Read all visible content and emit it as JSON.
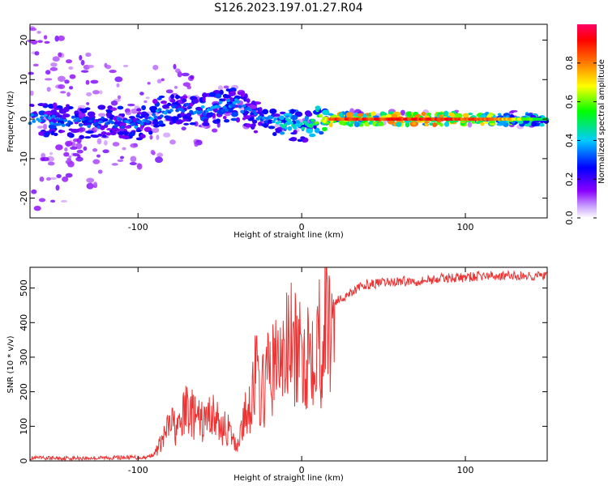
{
  "title": "S126.2023.197.01.27.R04",
  "chart_data": [
    {
      "type": "heatmap",
      "xlabel": "Height of straight line (km)",
      "ylabel": "Frequency (Hz)",
      "xlim": [
        -166,
        150
      ],
      "ylim": [
        -25,
        24
      ],
      "xticks": [
        -100,
        0,
        100
      ],
      "yticks": [
        -20,
        -10,
        0,
        10,
        20
      ],
      "colorbar": {
        "label": "Normalized spectral amplitude",
        "range": [
          0,
          1
        ],
        "ticks": [
          0.0,
          0.2,
          0.4,
          0.6,
          0.8
        ],
        "colormap": [
          "#ffffff",
          "#8a00ff",
          "#0000ff",
          "#00ccff",
          "#00ff00",
          "#ffff00",
          "#ff6600",
          "#ff0000",
          "#ff0066"
        ]
      },
      "description_points": {
        "ridge": [
          {
            "x": -166,
            "y": 0,
            "amp": 0.35
          },
          {
            "x": -120,
            "y": -1,
            "amp": 0.3
          },
          {
            "x": -95,
            "y": -1,
            "amp": 0.35
          },
          {
            "x": -85,
            "y": 2,
            "amp": 0.35
          },
          {
            "x": -75,
            "y": 3,
            "amp": 0.3
          },
          {
            "x": -60,
            "y": 2,
            "amp": 0.35
          },
          {
            "x": -40,
            "y": 4,
            "amp": 0.35
          },
          {
            "x": -30,
            "y": 1,
            "amp": 0.3
          },
          {
            "x": -20,
            "y": 0,
            "amp": 0.35
          },
          {
            "x": -10,
            "y": -1,
            "amp": 0.45
          },
          {
            "x": 0,
            "y": -2,
            "amp": 0.4
          },
          {
            "x": 10,
            "y": 0,
            "amp": 0.55
          },
          {
            "x": 20,
            "y": 0,
            "amp": 0.85
          },
          {
            "x": 80,
            "y": 0,
            "amp": 0.9
          },
          {
            "x": 120,
            "y": 0,
            "amp": 0.75
          },
          {
            "x": 150,
            "y": 0,
            "amp": 0.45
          }
        ]
      }
    },
    {
      "type": "line",
      "xlabel": "Height of straight line (km)",
      "ylabel": "SNR (10 * v/v)",
      "xlim": [
        -166,
        150
      ],
      "ylim": [
        0,
        560
      ],
      "xticks": [
        -100,
        0,
        100
      ],
      "yticks": [
        0,
        100,
        200,
        300,
        400,
        500
      ],
      "color": "#ee3333",
      "series": [
        {
          "x": [
            -166,
            -150,
            -130,
            -110,
            -95,
            -90,
            -85,
            -80,
            -75,
            -70,
            -65,
            -60,
            -55,
            -50,
            -45,
            -40,
            -35,
            -30,
            -28,
            -25,
            -20,
            -15,
            -10,
            -8,
            -5,
            0,
            5,
            8,
            10,
            12,
            15,
            18,
            20,
            25,
            30,
            40,
            50,
            60,
            70,
            80,
            90,
            100,
            110,
            120,
            130,
            140,
            150
          ],
          "y": [
            8,
            8,
            8,
            10,
            10,
            20,
            60,
            110,
            90,
            160,
            120,
            110,
            140,
            100,
            90,
            40,
            120,
            200,
            260,
            180,
            260,
            280,
            300,
            350,
            320,
            290,
            330,
            360,
            380,
            320,
            420,
            390,
            460,
            470,
            490,
            510,
            515,
            520,
            520,
            525,
            530,
            530,
            535,
            535,
            535,
            535,
            535
          ]
        }
      ]
    }
  ]
}
